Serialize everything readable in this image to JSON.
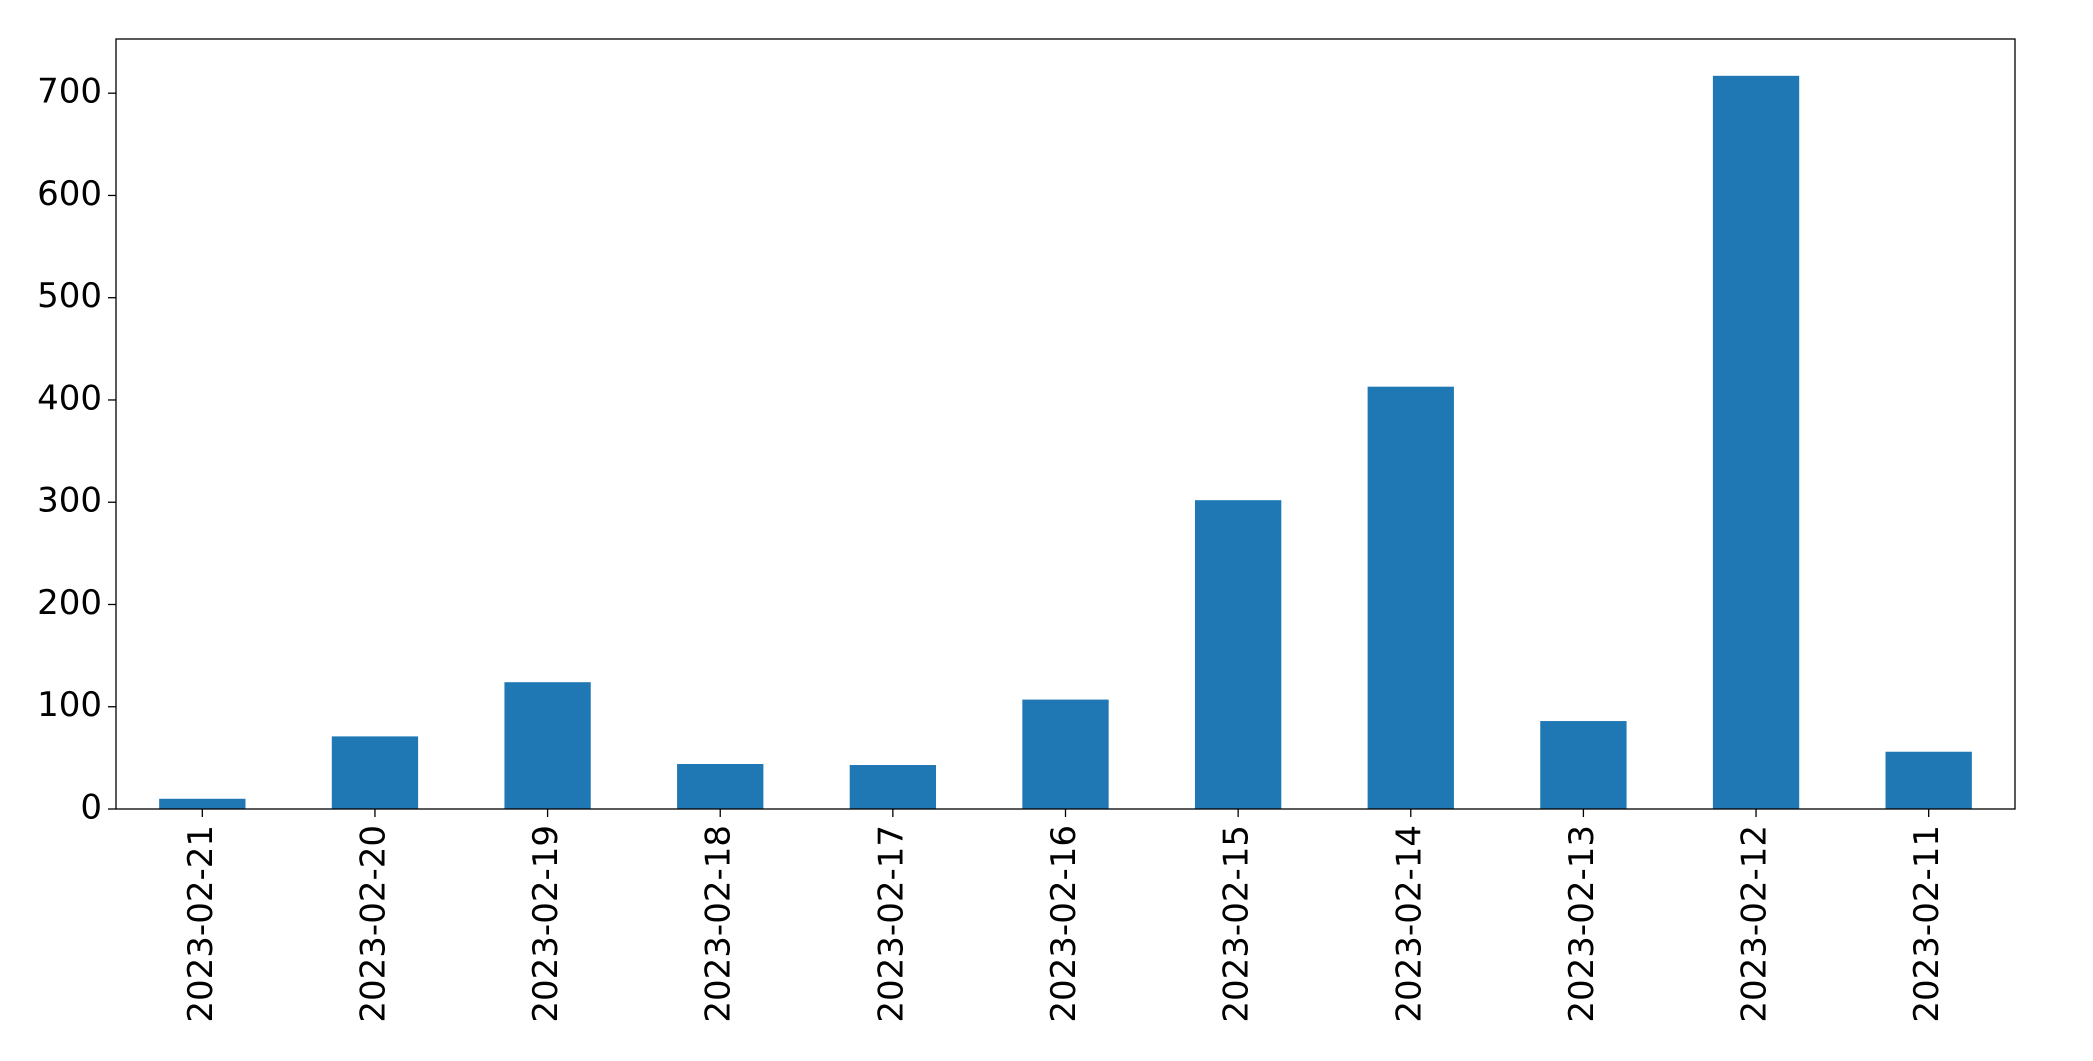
{
  "chart_data": {
    "type": "bar",
    "categories": [
      "2023-02-21",
      "2023-02-20",
      "2023-02-19",
      "2023-02-18",
      "2023-02-17",
      "2023-02-16",
      "2023-02-15",
      "2023-02-14",
      "2023-02-13",
      "2023-02-12",
      "2023-02-11"
    ],
    "values": [
      10,
      71,
      124,
      44,
      43,
      107,
      302,
      413,
      86,
      717,
      56
    ],
    "color": "#1f77b4",
    "ylim": [
      0,
      753
    ],
    "yticks": [
      0,
      100,
      200,
      300,
      400,
      500,
      600,
      700
    ],
    "grid": false
  }
}
